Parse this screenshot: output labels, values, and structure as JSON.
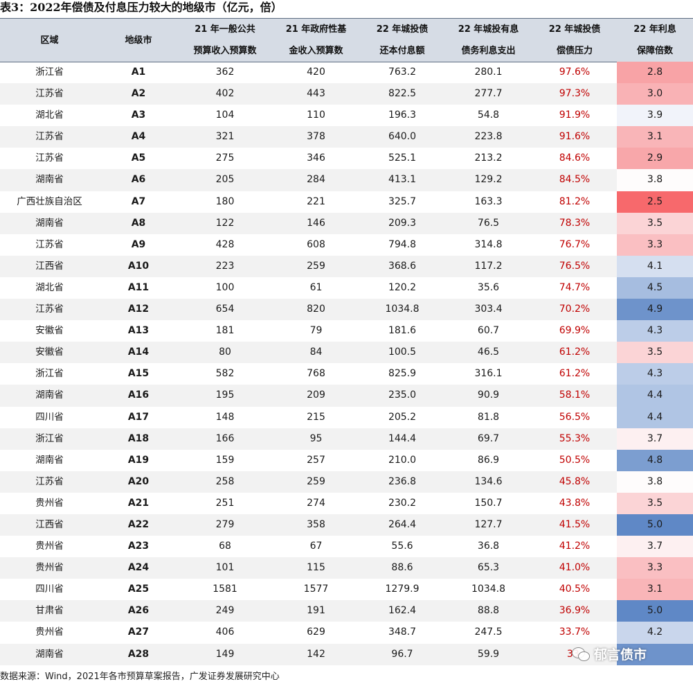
{
  "title": "表3：2022年偿债及付息压力较大的地级市（亿元，倍）",
  "headers": {
    "region": "区域",
    "city": "地级市",
    "budget_general_1": "21 年一般公共",
    "budget_general_2": "预算收入预算数",
    "budget_gov_1": "21 年政府性基",
    "budget_gov_2": "金收入预算数",
    "repay_1": "22 年城投债",
    "repay_2": "还本付息额",
    "interest_1": "22 年城投有息",
    "interest_2": "债务利息支出",
    "pressure_1": "22 年城投债",
    "pressure_2": "偿债压力",
    "coverage_1": "22 年利息",
    "coverage_2": "保障倍数"
  },
  "rows": [
    {
      "region": "浙江省",
      "city": "A1",
      "general": "362",
      "gov": "420",
      "repay": "763.2",
      "interest": "280.1",
      "pressure": "97.6%",
      "coverage": "2.8",
      "coverage_color": "#f8a3a6"
    },
    {
      "region": "江苏省",
      "city": "A2",
      "general": "402",
      "gov": "443",
      "repay": "822.5",
      "interest": "277.7",
      "pressure": "97.3%",
      "coverage": "3.0",
      "coverage_color": "#f9b2b5"
    },
    {
      "region": "湖北省",
      "city": "A3",
      "general": "104",
      "gov": "110",
      "repay": "196.3",
      "interest": "54.8",
      "pressure": "91.9%",
      "coverage": "3.9",
      "coverage_color": "#f1f3fa"
    },
    {
      "region": "江苏省",
      "city": "A4",
      "general": "321",
      "gov": "378",
      "repay": "640.0",
      "interest": "223.8",
      "pressure": "91.6%",
      "coverage": "3.1",
      "coverage_color": "#f9b5b8"
    },
    {
      "region": "江苏省",
      "city": "A5",
      "general": "275",
      "gov": "346",
      "repay": "525.1",
      "interest": "213.2",
      "pressure": "84.6%",
      "coverage": "2.9",
      "coverage_color": "#f8a7aa"
    },
    {
      "region": "湖南省",
      "city": "A6",
      "general": "205",
      "gov": "284",
      "repay": "413.1",
      "interest": "129.2",
      "pressure": "84.5%",
      "coverage": "3.8",
      "coverage_color": "#fefcfc"
    },
    {
      "region": "广西壮族自治区",
      "city": "A7",
      "general": "180",
      "gov": "221",
      "repay": "325.7",
      "interest": "163.3",
      "pressure": "81.2%",
      "coverage": "2.5",
      "coverage_color": "#f7696c"
    },
    {
      "region": "湖南省",
      "city": "A8",
      "general": "122",
      "gov": "146",
      "repay": "209.3",
      "interest": "76.5",
      "pressure": "78.3%",
      "coverage": "3.5",
      "coverage_color": "#fbd4d6"
    },
    {
      "region": "江苏省",
      "city": "A9",
      "general": "428",
      "gov": "608",
      "repay": "794.8",
      "interest": "314.8",
      "pressure": "76.7%",
      "coverage": "3.3",
      "coverage_color": "#fabfc2"
    },
    {
      "region": "江西省",
      "city": "A10",
      "general": "223",
      "gov": "259",
      "repay": "368.6",
      "interest": "117.2",
      "pressure": "76.5%",
      "coverage": "4.1",
      "coverage_color": "#d5dff0"
    },
    {
      "region": "湖北省",
      "city": "A11",
      "general": "100",
      "gov": "61",
      "repay": "120.2",
      "interest": "35.6",
      "pressure": "74.7%",
      "coverage": "4.5",
      "coverage_color": "#a6bde0"
    },
    {
      "region": "江苏省",
      "city": "A12",
      "general": "654",
      "gov": "820",
      "repay": "1034.8",
      "interest": "303.4",
      "pressure": "70.2%",
      "coverage": "4.9",
      "coverage_color": "#6e93cb"
    },
    {
      "region": "安徽省",
      "city": "A13",
      "general": "181",
      "gov": "79",
      "repay": "181.6",
      "interest": "60.7",
      "pressure": "69.9%",
      "coverage": "4.3",
      "coverage_color": "#bccde8"
    },
    {
      "region": "安徽省",
      "city": "A14",
      "general": "80",
      "gov": "84",
      "repay": "100.5",
      "interest": "46.5",
      "pressure": "61.2%",
      "coverage": "3.5",
      "coverage_color": "#fbd4d6"
    },
    {
      "region": "浙江省",
      "city": "A15",
      "general": "582",
      "gov": "768",
      "repay": "825.9",
      "interest": "316.1",
      "pressure": "61.2%",
      "coverage": "4.3",
      "coverage_color": "#bccde8"
    },
    {
      "region": "湖南省",
      "city": "A16",
      "general": "195",
      "gov": "209",
      "repay": "235.0",
      "interest": "90.9",
      "pressure": "58.1%",
      "coverage": "4.4",
      "coverage_color": "#b0c5e4"
    },
    {
      "region": "四川省",
      "city": "A17",
      "general": "148",
      "gov": "215",
      "repay": "205.2",
      "interest": "81.8",
      "pressure": "56.5%",
      "coverage": "4.4",
      "coverage_color": "#b0c5e4"
    },
    {
      "region": "浙江省",
      "city": "A18",
      "general": "166",
      "gov": "95",
      "repay": "144.4",
      "interest": "69.7",
      "pressure": "55.3%",
      "coverage": "3.7",
      "coverage_color": "#fdf0f1"
    },
    {
      "region": "湖南省",
      "city": "A19",
      "general": "159",
      "gov": "257",
      "repay": "210.0",
      "interest": "86.9",
      "pressure": "50.5%",
      "coverage": "4.8",
      "coverage_color": "#7c9ed0"
    },
    {
      "region": "江苏省",
      "city": "A20",
      "general": "258",
      "gov": "259",
      "repay": "236.8",
      "interest": "134.6",
      "pressure": "45.8%",
      "coverage": "3.8",
      "coverage_color": "#fefcfc"
    },
    {
      "region": "贵州省",
      "city": "A21",
      "general": "251",
      "gov": "274",
      "repay": "230.2",
      "interest": "150.7",
      "pressure": "43.8%",
      "coverage": "3.5",
      "coverage_color": "#fbd4d6"
    },
    {
      "region": "江西省",
      "city": "A22",
      "general": "279",
      "gov": "358",
      "repay": "264.4",
      "interest": "127.7",
      "pressure": "41.5%",
      "coverage": "5.0",
      "coverage_color": "#5f88c6"
    },
    {
      "region": "贵州省",
      "city": "A23",
      "general": "68",
      "gov": "67",
      "repay": "55.6",
      "interest": "36.8",
      "pressure": "41.2%",
      "coverage": "3.7",
      "coverage_color": "#fdf0f1"
    },
    {
      "region": "贵州省",
      "city": "A24",
      "general": "101",
      "gov": "115",
      "repay": "88.6",
      "interest": "65.3",
      "pressure": "41.0%",
      "coverage": "3.3",
      "coverage_color": "#fabfc2"
    },
    {
      "region": "四川省",
      "city": "A25",
      "general": "1581",
      "gov": "1577",
      "repay": "1279.9",
      "interest": "1034.8",
      "pressure": "40.5%",
      "coverage": "3.1",
      "coverage_color": "#f9b5b8"
    },
    {
      "region": "甘肃省",
      "city": "A26",
      "general": "249",
      "gov": "191",
      "repay": "162.4",
      "interest": "88.8",
      "pressure": "36.9%",
      "coverage": "5.0",
      "coverage_color": "#5f88c6"
    },
    {
      "region": "贵州省",
      "city": "A27",
      "general": "406",
      "gov": "629",
      "repay": "348.7",
      "interest": "247.5",
      "pressure": "33.7%",
      "coverage": "4.2",
      "coverage_color": "#c9d6ec"
    },
    {
      "region": "湖南省",
      "city": "A28",
      "general": "149",
      "gov": "142",
      "repay": "96.7",
      "interest": "59.9",
      "pressure": "33.",
      "coverage": "",
      "coverage_color": "#6e93cb"
    }
  ],
  "source": "数据来源：Wind，2021年各市预算草案报告，广发证券发展研究中心",
  "watermark": "郁言债市",
  "watermark_icon": "wechat-icon"
}
